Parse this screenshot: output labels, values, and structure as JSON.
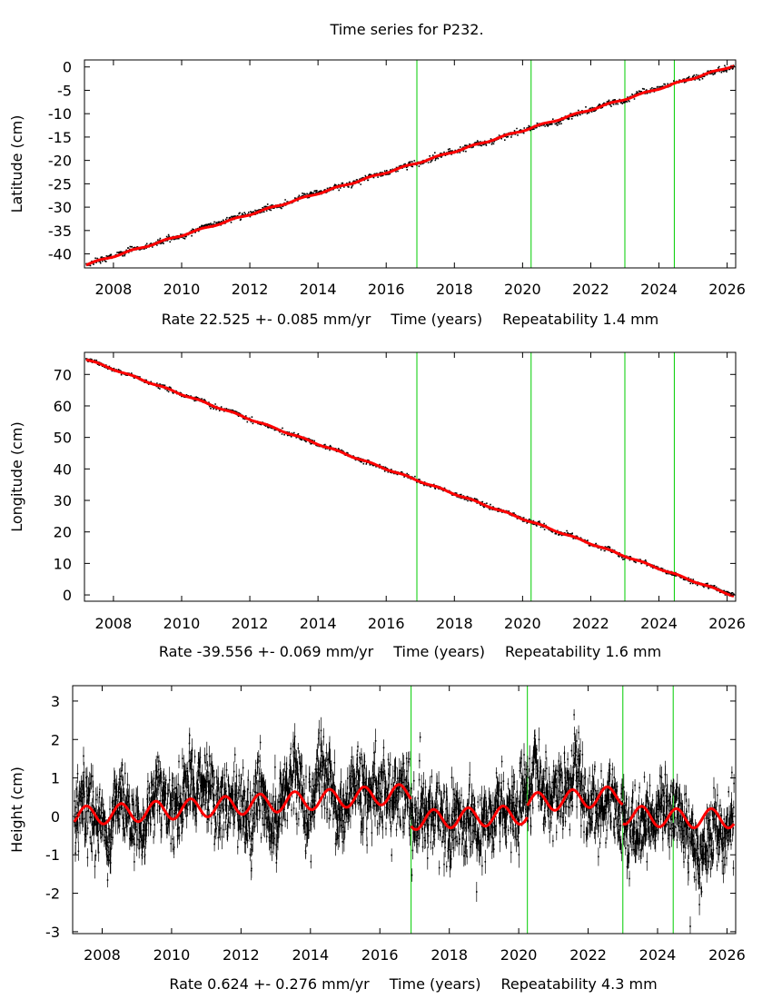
{
  "title": "Time series for P232.",
  "colors": {
    "data": "#000000",
    "model": "#ff0000",
    "breaks": "#00cc00",
    "frame": "#000000"
  },
  "chart_data": [
    {
      "type": "scatter",
      "id": "latitude",
      "ylabel": "Latitude (cm)",
      "xlabel": "Time (years)",
      "rate_text": "Rate 22.525 +- 0.085 mm/yr",
      "xlabel_text": "Time (years)",
      "repeat_text": "Repeatability 1.4 mm",
      "xlim": [
        2007.15,
        2026.25
      ],
      "ylim": [
        -43,
        1.5
      ],
      "xticks": [
        2008,
        2010,
        2012,
        2014,
        2016,
        2018,
        2020,
        2022,
        2024,
        2026
      ],
      "xtick_labels": [
        "2008",
        "2010",
        "2012",
        "2014",
        "2016",
        "2018",
        "2020",
        "2022",
        "2024",
        "2026"
      ],
      "yticks": [
        0,
        -5,
        -10,
        -15,
        -20,
        -25,
        -30,
        -35,
        -40
      ],
      "ytick_labels": [
        "0",
        "-5",
        "-10",
        "-15",
        "-20",
        "-25",
        "-30",
        "-35",
        "-40"
      ],
      "breaks": [
        2016.9,
        2020.25,
        2023.0,
        2024.45
      ],
      "series": [
        {
          "name": "model",
          "x": [
            2007.2,
            2026.2
          ],
          "y": [
            -42.3,
            0.3
          ]
        }
      ],
      "noise_cm": 0.3,
      "seasonal_cm": 0.15
    },
    {
      "type": "scatter",
      "id": "longitude",
      "ylabel": "Longitude (cm)",
      "xlabel": "Time (years)",
      "rate_text": "Rate -39.556 +- 0.069 mm/yr",
      "xlabel_text": "Time (years)",
      "repeat_text": "Repeatability 1.6 mm",
      "xlim": [
        2007.15,
        2026.25
      ],
      "ylim": [
        -2,
        77
      ],
      "xticks": [
        2008,
        2010,
        2012,
        2014,
        2016,
        2018,
        2020,
        2022,
        2024,
        2026
      ],
      "xtick_labels": [
        "2008",
        "2010",
        "2012",
        "2014",
        "2016",
        "2018",
        "2020",
        "2022",
        "2024",
        "2026"
      ],
      "yticks": [
        0,
        10,
        20,
        30,
        40,
        50,
        60,
        70
      ],
      "ytick_labels": [
        "0",
        "10",
        "20",
        "30",
        "40",
        "50",
        "60",
        "70"
      ],
      "breaks": [
        2016.9,
        2020.25,
        2023.0,
        2024.45
      ],
      "series": [
        {
          "name": "model",
          "x": [
            2007.2,
            2026.2
          ],
          "y": [
            74.8,
            -0.3
          ]
        }
      ],
      "noise_cm": 0.35,
      "seasonal_cm": 0.2
    },
    {
      "type": "scatter",
      "id": "height",
      "ylabel": "Height (cm)",
      "xlabel": "Time (years)",
      "rate_text": "Rate 0.624 +- 0.276 mm/yr",
      "xlabel_text": "Time (years)",
      "repeat_text": "Repeatability 4.3 mm",
      "xlim": [
        2007.15,
        2026.25
      ],
      "ylim": [
        -3.05,
        3.4
      ],
      "xticks": [
        2008,
        2010,
        2012,
        2014,
        2016,
        2018,
        2020,
        2022,
        2024,
        2026
      ],
      "xtick_labels": [
        "2008",
        "2010",
        "2012",
        "2014",
        "2016",
        "2018",
        "2020",
        "2022",
        "2024",
        "2026"
      ],
      "yticks": [
        3,
        2,
        1,
        0,
        -1,
        -2,
        -3
      ],
      "ytick_labels": [
        "3",
        "2",
        "1",
        "0",
        "-1",
        "-2",
        "-3"
      ],
      "breaks": [
        2016.9,
        2020.25,
        2023.0,
        2024.45
      ],
      "segments": [
        {
          "x0": 2007.2,
          "x1": 2016.9,
          "y0": 0.0,
          "y1": 0.6
        },
        {
          "x0": 2016.9,
          "x1": 2020.25,
          "y0": -0.1,
          "y1": 0.05
        },
        {
          "x0": 2020.25,
          "x1": 2023.0,
          "y0": 0.35,
          "y1": 0.55
        },
        {
          "x0": 2023.0,
          "x1": 2024.45,
          "y0": 0.05,
          "y1": -0.05
        },
        {
          "x0": 2024.45,
          "x1": 2026.2,
          "y0": -0.05,
          "y1": -0.05
        }
      ],
      "seasonal_cm": 0.25,
      "noise_cm": 0.45
    }
  ]
}
